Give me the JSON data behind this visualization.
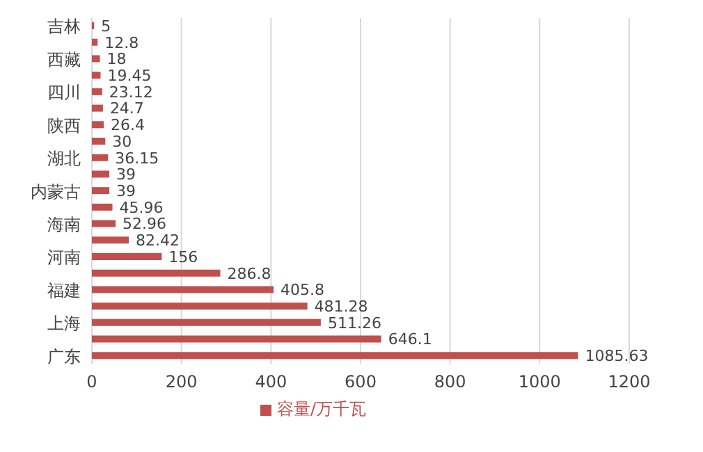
{
  "chart_data": {
    "type": "bar",
    "orientation": "horizontal",
    "categories": [
      "吉林",
      null,
      "西藏",
      null,
      "四川",
      null,
      "陕西",
      null,
      "湖北",
      null,
      "内蒙古",
      null,
      "海南",
      null,
      "河南",
      null,
      "福建",
      null,
      "上海",
      null,
      "广东"
    ],
    "series": [
      {
        "name": "容量/万千瓦",
        "color": "#c0504d",
        "values": [
          5,
          12.8,
          18,
          19.45,
          23.12,
          24.7,
          26.4,
          30,
          36.15,
          39,
          39,
          45.96,
          52.96,
          82.42,
          156,
          286.8,
          405.8,
          481.28,
          511.26,
          646.1,
          1085.63
        ]
      }
    ],
    "xlim": [
      0,
      1200
    ],
    "xticks": [
      0,
      200,
      400,
      600,
      800,
      1000,
      1200
    ],
    "data_labels": true,
    "grid": "x",
    "legend": "bottom"
  }
}
